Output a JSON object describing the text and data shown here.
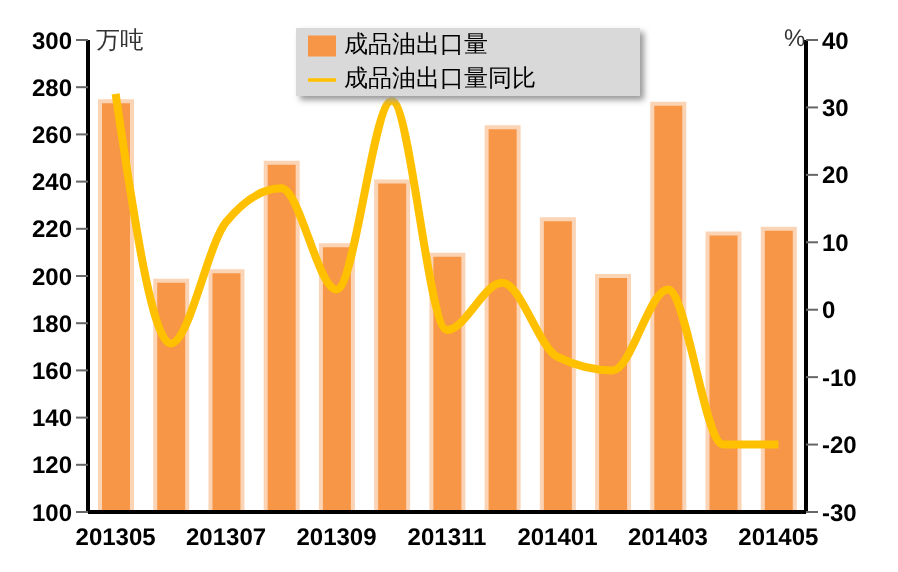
{
  "chart_data": {
    "type": "bar",
    "ylabel": "万吨",
    "y2label": "%",
    "categories": [
      "201305",
      null,
      "201307",
      null,
      "201309",
      null,
      "201311",
      null,
      "201401",
      null,
      "201403",
      null,
      "201405"
    ],
    "series": [
      {
        "name": "成品油出口量",
        "color": "#f79646",
        "values": [
          274,
          198,
          202,
          248,
          213,
          240,
          209,
          263,
          224,
          200,
          273,
          218,
          220
        ]
      },
      {
        "name": "成品油出口量同比",
        "type": "line",
        "axis": "y2",
        "color": "#ffc000",
        "values": [
          32,
          -5,
          13,
          18,
          3,
          31,
          -3,
          4,
          -7,
          -9,
          3,
          -20,
          -20
        ]
      }
    ],
    "ylim": [
      100,
      300
    ],
    "yticks": [
      100,
      120,
      140,
      160,
      180,
      200,
      220,
      240,
      260,
      280,
      300
    ],
    "y2lim": [
      -30,
      40
    ],
    "y2ticks": [
      -30,
      -20,
      -10,
      0,
      10,
      20,
      30,
      40
    ],
    "grid": false,
    "legend": "top",
    "marker": "none"
  }
}
